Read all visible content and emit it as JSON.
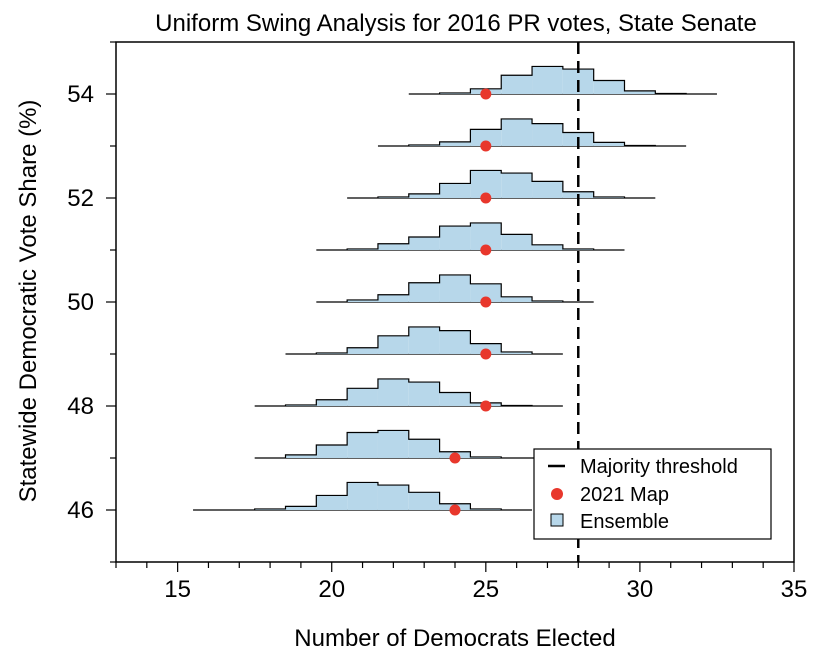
{
  "chart_data": {
    "type": "histogram-ridgeline",
    "title": "Uniform Swing Analysis for 2016 PR votes, State Senate",
    "xlabel": "Number of Democrats Elected",
    "ylabel": "Statewide Democratic Vote Share (%)",
    "xlim": [
      13,
      35
    ],
    "ylim": [
      45,
      55
    ],
    "x_major_ticks": [
      15,
      20,
      25,
      30,
      35
    ],
    "x_minor_step": 1,
    "y_major_ticks": [
      46,
      48,
      50,
      52,
      54
    ],
    "y_minor_step": 1,
    "majority_threshold": 28,
    "legend": {
      "position": "lower-right",
      "entries": [
        "Majority threshold",
        "2021 Map",
        "Ensemble"
      ]
    },
    "colors": {
      "ensemble_fill": "#b7d7ea",
      "map_dot": "#e8372c",
      "line": "#000000"
    },
    "series": [
      {
        "vote_share": 46,
        "map_value": 24,
        "range": [
          15.5,
          26.5
        ],
        "bins": [
          {
            "start": 17.5,
            "end": 18.5,
            "h": 0.02
          },
          {
            "start": 18.5,
            "end": 19.5,
            "h": 0.07
          },
          {
            "start": 19.5,
            "end": 20.5,
            "h": 0.28
          },
          {
            "start": 20.5,
            "end": 21.5,
            "h": 0.53
          },
          {
            "start": 21.5,
            "end": 22.5,
            "h": 0.48
          },
          {
            "start": 22.5,
            "end": 23.5,
            "h": 0.34
          },
          {
            "start": 23.5,
            "end": 24.5,
            "h": 0.12
          },
          {
            "start": 24.5,
            "end": 25.5,
            "h": 0.02
          }
        ]
      },
      {
        "vote_share": 47,
        "map_value": 24,
        "range": [
          17.5,
          27.5
        ],
        "bins": [
          {
            "start": 18.5,
            "end": 19.5,
            "h": 0.06
          },
          {
            "start": 19.5,
            "end": 20.5,
            "h": 0.25
          },
          {
            "start": 20.5,
            "end": 21.5,
            "h": 0.49
          },
          {
            "start": 21.5,
            "end": 22.5,
            "h": 0.53
          },
          {
            "start": 22.5,
            "end": 23.5,
            "h": 0.36
          },
          {
            "start": 23.5,
            "end": 24.5,
            "h": 0.12
          },
          {
            "start": 24.5,
            "end": 25.5,
            "h": 0.02
          }
        ]
      },
      {
        "vote_share": 48,
        "map_value": 25,
        "range": [
          17.5,
          27.5
        ],
        "bins": [
          {
            "start": 18.5,
            "end": 19.5,
            "h": 0.02
          },
          {
            "start": 19.5,
            "end": 20.5,
            "h": 0.12
          },
          {
            "start": 20.5,
            "end": 21.5,
            "h": 0.34
          },
          {
            "start": 21.5,
            "end": 22.5,
            "h": 0.52
          },
          {
            "start": 22.5,
            "end": 23.5,
            "h": 0.46
          },
          {
            "start": 23.5,
            "end": 24.5,
            "h": 0.26
          },
          {
            "start": 24.5,
            "end": 25.5,
            "h": 0.06
          },
          {
            "start": 25.5,
            "end": 26.5,
            "h": 0.01
          }
        ]
      },
      {
        "vote_share": 49,
        "map_value": 25,
        "range": [
          18.5,
          27.5
        ],
        "bins": [
          {
            "start": 19.5,
            "end": 20.5,
            "h": 0.02
          },
          {
            "start": 20.5,
            "end": 21.5,
            "h": 0.12
          },
          {
            "start": 21.5,
            "end": 22.5,
            "h": 0.35
          },
          {
            "start": 22.5,
            "end": 23.5,
            "h": 0.52
          },
          {
            "start": 23.5,
            "end": 24.5,
            "h": 0.45
          },
          {
            "start": 24.5,
            "end": 25.5,
            "h": 0.2
          },
          {
            "start": 25.5,
            "end": 26.5,
            "h": 0.04
          }
        ]
      },
      {
        "vote_share": 50,
        "map_value": 25,
        "range": [
          19.5,
          28.5
        ],
        "bins": [
          {
            "start": 20.5,
            "end": 21.5,
            "h": 0.04
          },
          {
            "start": 21.5,
            "end": 22.5,
            "h": 0.14
          },
          {
            "start": 22.5,
            "end": 23.5,
            "h": 0.37
          },
          {
            "start": 23.5,
            "end": 24.5,
            "h": 0.52
          },
          {
            "start": 24.5,
            "end": 25.5,
            "h": 0.35
          },
          {
            "start": 25.5,
            "end": 26.5,
            "h": 0.1
          },
          {
            "start": 26.5,
            "end": 27.5,
            "h": 0.02
          }
        ]
      },
      {
        "vote_share": 51,
        "map_value": 25,
        "range": [
          19.5,
          29.5
        ],
        "bins": [
          {
            "start": 20.5,
            "end": 21.5,
            "h": 0.02
          },
          {
            "start": 21.5,
            "end": 22.5,
            "h": 0.12
          },
          {
            "start": 22.5,
            "end": 23.5,
            "h": 0.25
          },
          {
            "start": 23.5,
            "end": 24.5,
            "h": 0.46
          },
          {
            "start": 24.5,
            "end": 25.5,
            "h": 0.52
          },
          {
            "start": 25.5,
            "end": 26.5,
            "h": 0.3
          },
          {
            "start": 26.5,
            "end": 27.5,
            "h": 0.1
          },
          {
            "start": 27.5,
            "end": 28.5,
            "h": 0.02
          }
        ]
      },
      {
        "vote_share": 52,
        "map_value": 25,
        "range": [
          20.5,
          30.5
        ],
        "bins": [
          {
            "start": 21.5,
            "end": 22.5,
            "h": 0.02
          },
          {
            "start": 22.5,
            "end": 23.5,
            "h": 0.08
          },
          {
            "start": 23.5,
            "end": 24.5,
            "h": 0.28
          },
          {
            "start": 24.5,
            "end": 25.5,
            "h": 0.53
          },
          {
            "start": 25.5,
            "end": 26.5,
            "h": 0.48
          },
          {
            "start": 26.5,
            "end": 27.5,
            "h": 0.32
          },
          {
            "start": 27.5,
            "end": 28.5,
            "h": 0.12
          },
          {
            "start": 28.5,
            "end": 29.5,
            "h": 0.02
          }
        ]
      },
      {
        "vote_share": 53,
        "map_value": 25,
        "range": [
          21.5,
          31.5
        ],
        "bins": [
          {
            "start": 22.5,
            "end": 23.5,
            "h": 0.02
          },
          {
            "start": 23.5,
            "end": 24.5,
            "h": 0.08
          },
          {
            "start": 24.5,
            "end": 25.5,
            "h": 0.32
          },
          {
            "start": 25.5,
            "end": 26.5,
            "h": 0.52
          },
          {
            "start": 26.5,
            "end": 27.5,
            "h": 0.43
          },
          {
            "start": 27.5,
            "end": 28.5,
            "h": 0.26
          },
          {
            "start": 28.5,
            "end": 29.5,
            "h": 0.07
          },
          {
            "start": 29.5,
            "end": 30.5,
            "h": 0.01
          }
        ]
      },
      {
        "vote_share": 54,
        "map_value": 25,
        "range": [
          22.5,
          32.5
        ],
        "bins": [
          {
            "start": 23.5,
            "end": 24.5,
            "h": 0.02
          },
          {
            "start": 24.5,
            "end": 25.5,
            "h": 0.1
          },
          {
            "start": 25.5,
            "end": 26.5,
            "h": 0.36
          },
          {
            "start": 26.5,
            "end": 27.5,
            "h": 0.53
          },
          {
            "start": 27.5,
            "end": 28.5,
            "h": 0.48
          },
          {
            "start": 28.5,
            "end": 29.5,
            "h": 0.26
          },
          {
            "start": 29.5,
            "end": 30.5,
            "h": 0.06
          },
          {
            "start": 30.5,
            "end": 31.5,
            "h": 0.01
          }
        ]
      }
    ]
  }
}
